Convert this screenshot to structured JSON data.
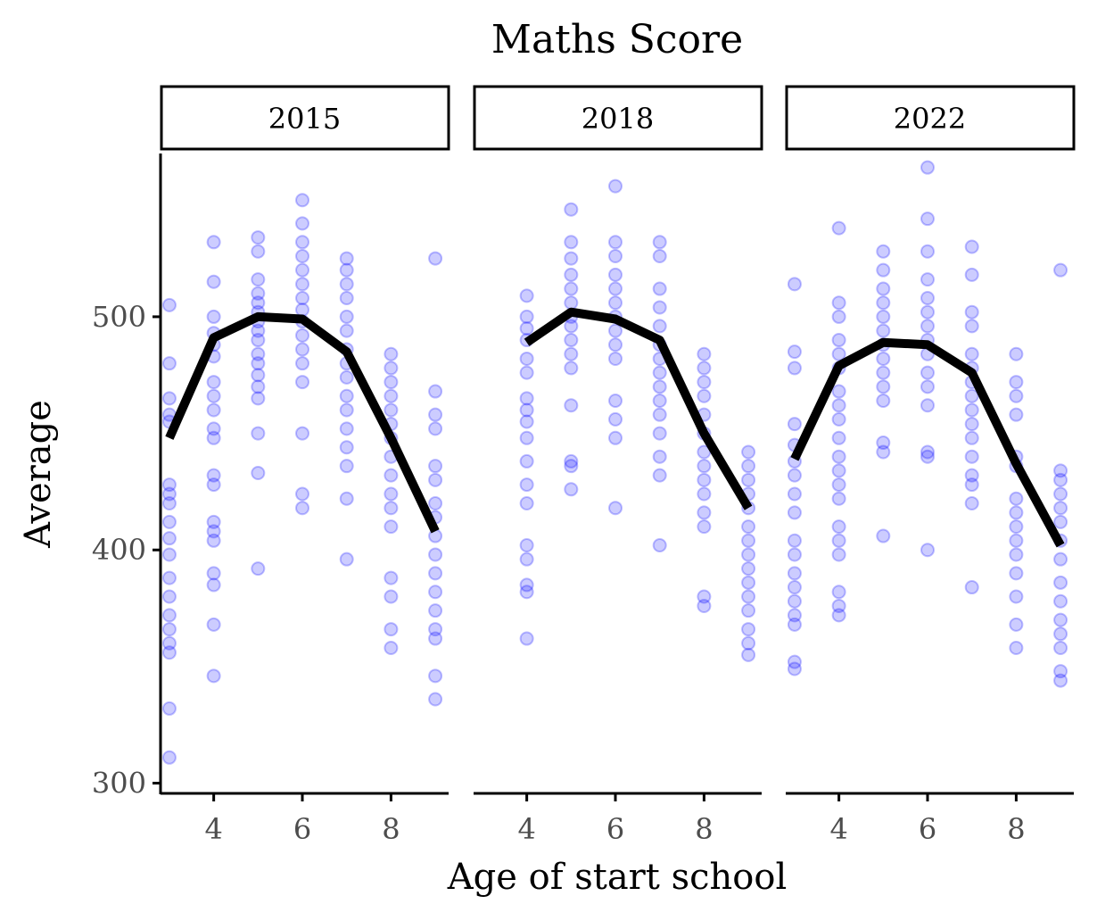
{
  "chart_data": {
    "type": "scatter",
    "title": "Maths Score",
    "xlabel": "Age of start school",
    "ylabel": "Average",
    "xlim": [
      2.8,
      9.3
    ],
    "ylim": [
      296,
      570
    ],
    "x_ticks": [
      4,
      6,
      8
    ],
    "y_ticks": [
      300,
      400,
      500
    ],
    "colors": {
      "points": "#0000ff",
      "line": "#000000"
    },
    "panels": [
      {
        "label": "2015",
        "line": {
          "x": [
            3,
            4,
            5,
            6,
            7,
            8,
            9
          ],
          "y": [
            448,
            491,
            500,
            499,
            485,
            448,
            408
          ]
        },
        "points": {
          "3": [
            505,
            480,
            465,
            458,
            455,
            428,
            424,
            420,
            412,
            405,
            398,
            388,
            380,
            372,
            366,
            360,
            356,
            332,
            311
          ],
          "4": [
            532,
            515,
            500,
            493,
            488,
            483,
            472,
            466,
            460,
            452,
            448,
            432,
            428,
            412,
            408,
            404,
            390,
            385,
            368,
            346
          ],
          "5": [
            534,
            528,
            516,
            510,
            506,
            502,
            498,
            494,
            490,
            484,
            480,
            475,
            470,
            465,
            450,
            433,
            392
          ],
          "6": [
            550,
            540,
            532,
            526,
            520,
            514,
            508,
            503,
            498,
            492,
            486,
            480,
            472,
            450,
            424,
            418
          ],
          "7": [
            525,
            520,
            514,
            508,
            500,
            494,
            486,
            480,
            474,
            466,
            460,
            452,
            444,
            436,
            422,
            396
          ],
          "8": [
            484,
            478,
            472,
            466,
            460,
            454,
            448,
            440,
            432,
            424,
            418,
            410,
            388,
            380,
            366,
            358
          ],
          "9": [
            525,
            468,
            458,
            452,
            436,
            430,
            420,
            414,
            406,
            398,
            390,
            382,
            374,
            366,
            362,
            346,
            336
          ]
        }
      },
      {
        "label": "2018",
        "line": {
          "x": [
            4,
            5,
            6,
            7,
            8,
            9
          ],
          "y": [
            489,
            502,
            499,
            490,
            450,
            418
          ]
        },
        "points": {
          "4": [
            509,
            500,
            495,
            490,
            482,
            476,
            465,
            460,
            455,
            448,
            438,
            428,
            420,
            402,
            396,
            385,
            382,
            362
          ],
          "5": [
            546,
            532,
            525,
            518,
            512,
            506,
            500,
            496,
            490,
            484,
            478,
            462,
            438,
            436,
            426
          ],
          "6": [
            556,
            532,
            526,
            518,
            512,
            506,
            500,
            494,
            488,
            482,
            464,
            456,
            448,
            418
          ],
          "7": [
            532,
            526,
            512,
            504,
            496,
            488,
            482,
            476,
            470,
            464,
            458,
            450,
            440,
            432,
            402
          ],
          "8": [
            484,
            478,
            472,
            466,
            458,
            450,
            442,
            436,
            430,
            424,
            416,
            410,
            380,
            376
          ],
          "9": [
            442,
            436,
            430,
            424,
            418,
            410,
            404,
            398,
            392,
            386,
            380,
            374,
            366,
            360,
            355
          ]
        }
      },
      {
        "label": "2022",
        "line": {
          "x": [
            3,
            4,
            5,
            6,
            7,
            8,
            9
          ],
          "y": [
            439,
            479,
            489,
            488,
            476,
            437,
            402
          ]
        },
        "points": {
          "3": [
            514,
            485,
            478,
            454,
            445,
            438,
            432,
            424,
            416,
            404,
            398,
            390,
            384,
            378,
            372,
            368,
            352,
            349
          ],
          "4": [
            538,
            506,
            500,
            490,
            484,
            478,
            468,
            462,
            456,
            448,
            440,
            434,
            428,
            422,
            410,
            404,
            398,
            382,
            376,
            372
          ],
          "5": [
            528,
            520,
            512,
            506,
            500,
            494,
            488,
            482,
            476,
            470,
            464,
            446,
            442,
            406
          ],
          "6": [
            564,
            542,
            528,
            516,
            508,
            502,
            496,
            490,
            484,
            476,
            470,
            462,
            442,
            440,
            400
          ],
          "7": [
            530,
            518,
            502,
            496,
            484,
            478,
            472,
            466,
            460,
            454,
            448,
            440,
            432,
            428,
            420,
            384
          ],
          "8": [
            484,
            472,
            466,
            458,
            440,
            436,
            422,
            416,
            410,
            404,
            398,
            390,
            380,
            368,
            358
          ],
          "9": [
            520,
            434,
            430,
            424,
            418,
            412,
            404,
            396,
            386,
            378,
            370,
            364,
            358,
            348,
            344
          ]
        }
      }
    ]
  }
}
